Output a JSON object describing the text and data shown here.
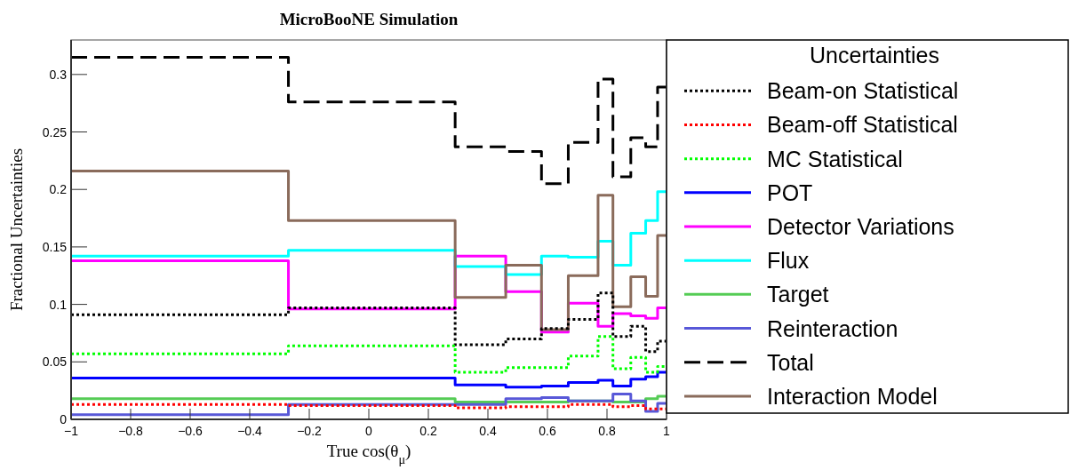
{
  "chart_data": {
    "type": "histogram",
    "title": "MicroBooNE Simulation",
    "xlabel": "True cos(θ$_{μ}$)",
    "ylabel": "Fractional Uncertainties",
    "legend_title": "Uncertainties",
    "legend": "right",
    "grid": false,
    "bins": [
      -1,
      -0.27,
      0.29,
      0.46,
      0.58,
      0.67,
      0.77,
      0.82,
      0.88,
      0.93,
      0.97,
      1
    ],
    "xlim": [
      -1,
      1
    ],
    "xticks": [
      {
        "value": -1,
        "label": "−1"
      },
      {
        "value": -0.8,
        "label": "−0.8"
      },
      {
        "value": -0.6,
        "label": "−0.6"
      },
      {
        "value": -0.4,
        "label": "−0.4"
      },
      {
        "value": -0.2,
        "label": "−0.2"
      },
      0,
      0.2,
      0.4,
      0.6,
      0.8,
      1
    ],
    "ylim": [
      0,
      0.33
    ],
    "yticks": [
      0,
      0.05,
      0.1,
      0.15,
      0.2,
      0.25,
      0.3
    ],
    "series": [
      {
        "name": "Beam-on Statistical",
        "color": "#000000",
        "line_style": "dotted",
        "values": [
          0.091,
          0.097,
          0.065,
          0.07,
          0.079,
          0.087,
          0.11,
          0.072,
          0.081,
          0.059,
          0.068
        ]
      },
      {
        "name": "Beam-off Statistical",
        "color": "#ff0000",
        "line_style": "dotted",
        "values": [
          0.013,
          0.012,
          0.01,
          0.011,
          0.011,
          0.013,
          0.013,
          0.011,
          0.012,
          0.009,
          0.009
        ]
      },
      {
        "name": "MC Statistical",
        "color": "#00ff00",
        "line_style": "dotted",
        "values": [
          0.057,
          0.064,
          0.041,
          0.045,
          0.045,
          0.055,
          0.072,
          0.044,
          0.054,
          0.041,
          0.046
        ]
      },
      {
        "name": "POT",
        "color": "#0000ff",
        "line_style": "solid",
        "values": [
          0.036,
          0.036,
          0.03,
          0.028,
          0.029,
          0.032,
          0.034,
          0.029,
          0.035,
          0.037,
          0.041
        ]
      },
      {
        "name": "Detector Variations",
        "color": "#ff00ff",
        "line_style": "solid",
        "values": [
          0.138,
          0.096,
          0.142,
          0.111,
          0.076,
          0.101,
          0.081,
          0.092,
          0.09,
          0.088,
          0.097
        ]
      },
      {
        "name": "Flux",
        "color": "#00ffff",
        "line_style": "solid",
        "values": [
          0.142,
          0.147,
          0.133,
          0.126,
          0.142,
          0.141,
          0.155,
          0.134,
          0.162,
          0.173,
          0.198
        ]
      },
      {
        "name": "Target",
        "color": "#55cc55",
        "line_style": "solid",
        "values": [
          0.018,
          0.018,
          0.015,
          0.015,
          0.015,
          0.016,
          0.016,
          0.015,
          0.015,
          0.018,
          0.02
        ]
      },
      {
        "name": "Reinteraction",
        "color": "#5858d8",
        "line_style": "solid",
        "values": [
          0.004,
          0.013,
          0.013,
          0.018,
          0.019,
          0.016,
          0.016,
          0.022,
          0.016,
          0.007,
          0.014
        ]
      },
      {
        "name": "Total",
        "color": "#000000",
        "line_style": "dashed",
        "values": [
          0.315,
          0.276,
          0.237,
          0.233,
          0.205,
          0.241,
          0.296,
          0.211,
          0.245,
          0.237,
          0.289
        ]
      },
      {
        "name": "Interaction Model",
        "color": "#8a6b5b",
        "line_style": "solid",
        "values": [
          0.216,
          0.173,
          0.106,
          0.134,
          0.078,
          0.125,
          0.195,
          0.098,
          0.124,
          0.107,
          0.16
        ]
      }
    ]
  }
}
